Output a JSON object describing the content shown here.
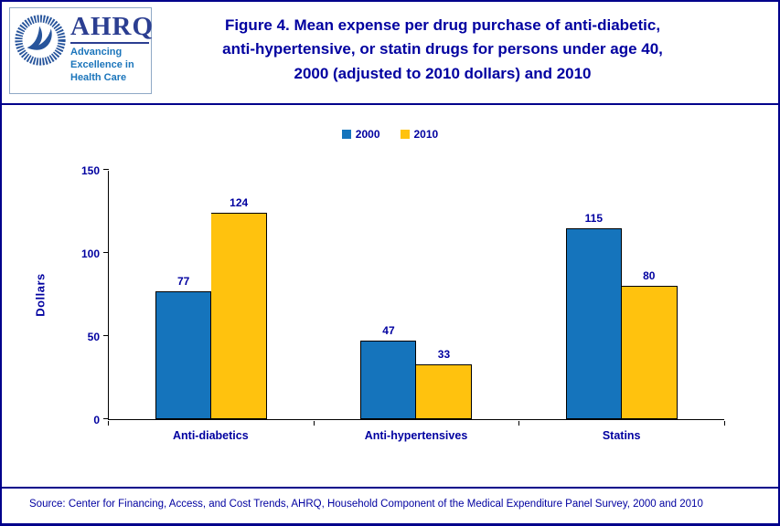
{
  "header": {
    "logo": {
      "org": "AHRQ",
      "tagline": "Advancing\nExcellence in\nHealth Care"
    },
    "title": "Figure 4. Mean expense per drug purchase of anti-diabetic,\nanti-hypertensive, or statin drugs for persons under age 40,\n2000 (adjusted to 2010 dollars) and 2010"
  },
  "chart_data": {
    "type": "bar",
    "title": "Figure 4. Mean expense per drug purchase of anti-diabetic, anti-hypertensive, or statin drugs for persons under age 40, 2000 (adjusted to 2010 dollars) and 2010",
    "categories": [
      "Anti-diabetics",
      "Anti-hypertensives",
      "Statins"
    ],
    "series": [
      {
        "name": "2000",
        "color": "#1574BC",
        "values": [
          77,
          47,
          115
        ]
      },
      {
        "name": "2010",
        "color": "#FFC20E",
        "values": [
          124,
          33,
          80
        ]
      }
    ],
    "xlabel": "",
    "ylabel": "Dollars",
    "ylim": [
      0,
      150
    ],
    "yticks": [
      0,
      50,
      100,
      150
    ],
    "grid": false,
    "legend_position": "top-center"
  },
  "footer": {
    "source": "Source: Center for Financing, Access, and Cost Trends, AHRQ, Household Component of the Medical Expenditure Panel Survey, 2000 and 2010"
  },
  "colors": {
    "accent_navy": "#0000A0",
    "border_navy": "#00008B",
    "bar_2000_blue": "#1574BC",
    "bar_2010_yellow": "#FFC20E"
  }
}
